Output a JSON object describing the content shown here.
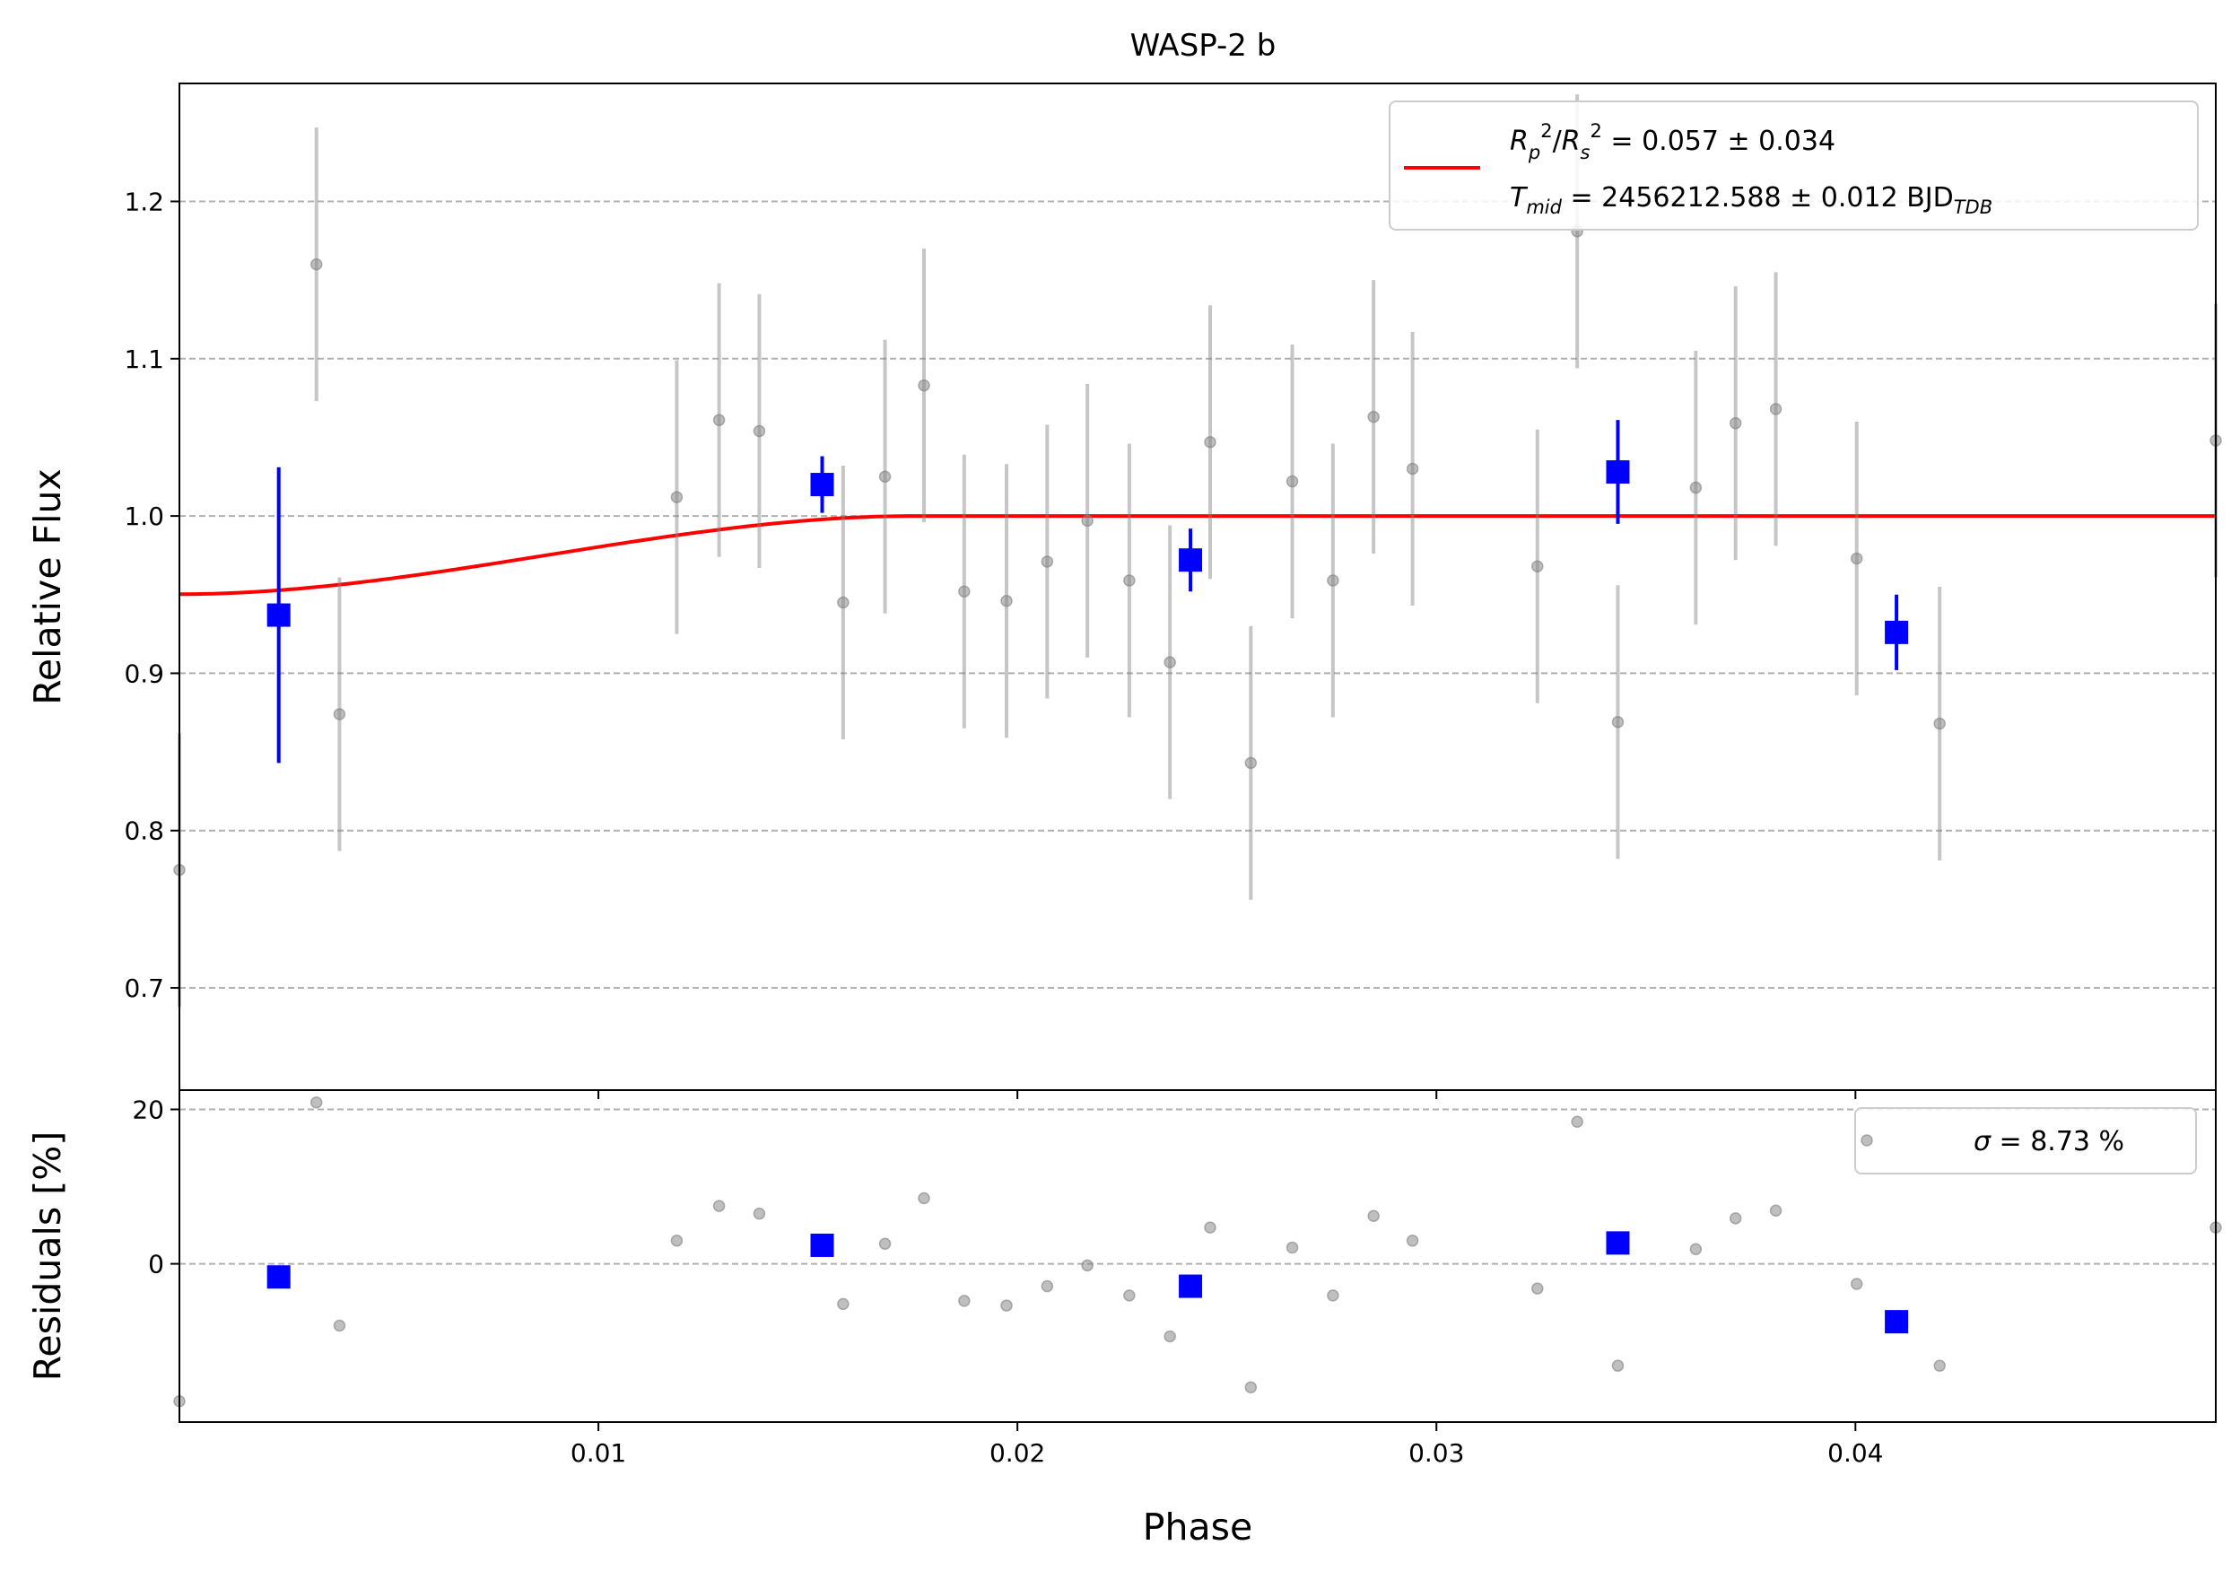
{
  "chart_data": [
    {
      "type": "scatter",
      "panel": "top",
      "title": "WASP-2 b",
      "xlabel": "",
      "ylabel": "Relative Flux",
      "xlim": [
        0.0,
        0.0486
      ],
      "ylim": [
        0.635,
        1.275
      ],
      "grid": {
        "y": true,
        "x": false,
        "style": "dashed"
      },
      "yticks": [
        0.7,
        0.8,
        0.9,
        1.0,
        1.1,
        1.2
      ],
      "ytick_labels": [
        "0.7",
        "0.8",
        "0.9",
        "1.0",
        "1.1",
        "1.2"
      ],
      "legend": {
        "placement": "top-right",
        "line1": {
          "label": "R_p^2/R_s^2",
          "value": " = 0.057 ± 0.034"
        },
        "line2": {
          "label": "T_mid",
          "value": " = 2456212.588 ± 0.012 BJD",
          "subscript": "TDB"
        }
      },
      "series": [
        {
          "kind": "points",
          "color": "#808080",
          "x": [
            0.0,
            0.00327,
            0.00382,
            0.01187,
            0.01288,
            0.01384,
            0.01584,
            0.01684,
            0.01777,
            0.01873,
            0.01974,
            0.02071,
            0.02167,
            0.02267,
            0.02364,
            0.0246,
            0.02557,
            0.02656,
            0.02753,
            0.0285,
            0.02943,
            0.03241,
            0.03336,
            0.03433,
            0.03619,
            0.03714,
            0.0381,
            0.04003,
            0.04201,
            0.0486
          ],
          "y": [
            0.775,
            1.16,
            0.874,
            1.012,
            1.061,
            1.054,
            0.945,
            1.025,
            1.083,
            0.952,
            0.946,
            0.971,
            0.997,
            0.959,
            0.907,
            1.047,
            0.843,
            1.022,
            0.959,
            1.063,
            1.03,
            0.968,
            1.181,
            0.869,
            1.018,
            1.059,
            1.068,
            0.973,
            0.868,
            1.048
          ],
          "yerr": [
            0.087,
            0.087,
            0.087,
            0.087,
            0.087,
            0.087,
            0.087,
            0.087,
            0.087,
            0.087,
            0.087,
            0.087,
            0.087,
            0.087,
            0.087,
            0.087,
            0.087,
            0.087,
            0.087,
            0.087,
            0.087,
            0.087,
            0.087,
            0.087,
            0.087,
            0.087,
            0.087,
            0.087,
            0.087,
            0.087
          ]
        },
        {
          "kind": "binned",
          "color": "#0000ff",
          "x": [
            0.00237,
            0.01534,
            0.02413,
            0.03433,
            0.04098
          ],
          "y": [
            0.937,
            1.02,
            0.972,
            1.028,
            0.926
          ],
          "yerr": [
            0.094,
            0.018,
            0.02,
            0.033,
            0.024
          ]
        },
        {
          "kind": "model",
          "name": "R_p^2/R_s^2",
          "color": "#ff0000",
          "transit_depth": 0.0497,
          "ingress_end": 0.01755,
          "plateau": 1.0
        }
      ]
    },
    {
      "type": "scatter",
      "panel": "bottom",
      "title": "",
      "xlabel": "Phase",
      "ylabel": "Residuals [%]",
      "xlim": [
        0.0,
        0.0486
      ],
      "ylim": [
        -20.5,
        22.5
      ],
      "grid": {
        "y": true,
        "x": false,
        "style": "dashed"
      },
      "yticks": [
        0,
        20
      ],
      "ytick_labels": [
        "0",
        "20"
      ],
      "xticks": [
        0.01,
        0.02,
        0.03,
        0.04
      ],
      "xtick_labels": [
        "0.01",
        "0.02",
        "0.03",
        "0.04"
      ],
      "legend": {
        "placement": "top-right",
        "symbol": "σ",
        "value": " = 8.73 %"
      },
      "series": [
        {
          "kind": "points",
          "color": "#808080",
          "x": [
            0.0,
            0.00327,
            0.00382,
            0.01187,
            0.01288,
            0.01384,
            0.01584,
            0.01684,
            0.01777,
            0.01873,
            0.01974,
            0.02071,
            0.02167,
            0.02267,
            0.02364,
            0.0246,
            0.02557,
            0.02656,
            0.02753,
            0.0285,
            0.02943,
            0.03241,
            0.03336,
            0.03433,
            0.03619,
            0.03714,
            0.0381,
            0.04003,
            0.04201,
            0.0486
          ],
          "y": [
            -17.8,
            20.9,
            -8.0,
            3.0,
            7.5,
            6.5,
            -5.2,
            2.6,
            8.5,
            -4.8,
            -5.4,
            -2.9,
            -0.2,
            -4.1,
            -9.4,
            4.7,
            -16.0,
            2.1,
            -4.1,
            6.2,
            3.0,
            -3.2,
            18.4,
            -13.2,
            1.9,
            5.9,
            6.9,
            -2.6,
            -13.2,
            4.7
          ]
        },
        {
          "kind": "binned",
          "color": "#0000ff",
          "x": [
            0.00237,
            0.01534,
            0.02413,
            0.03433,
            0.04098
          ],
          "y": [
            -1.7,
            2.4,
            -2.9,
            2.7,
            -7.5
          ]
        }
      ]
    }
  ]
}
